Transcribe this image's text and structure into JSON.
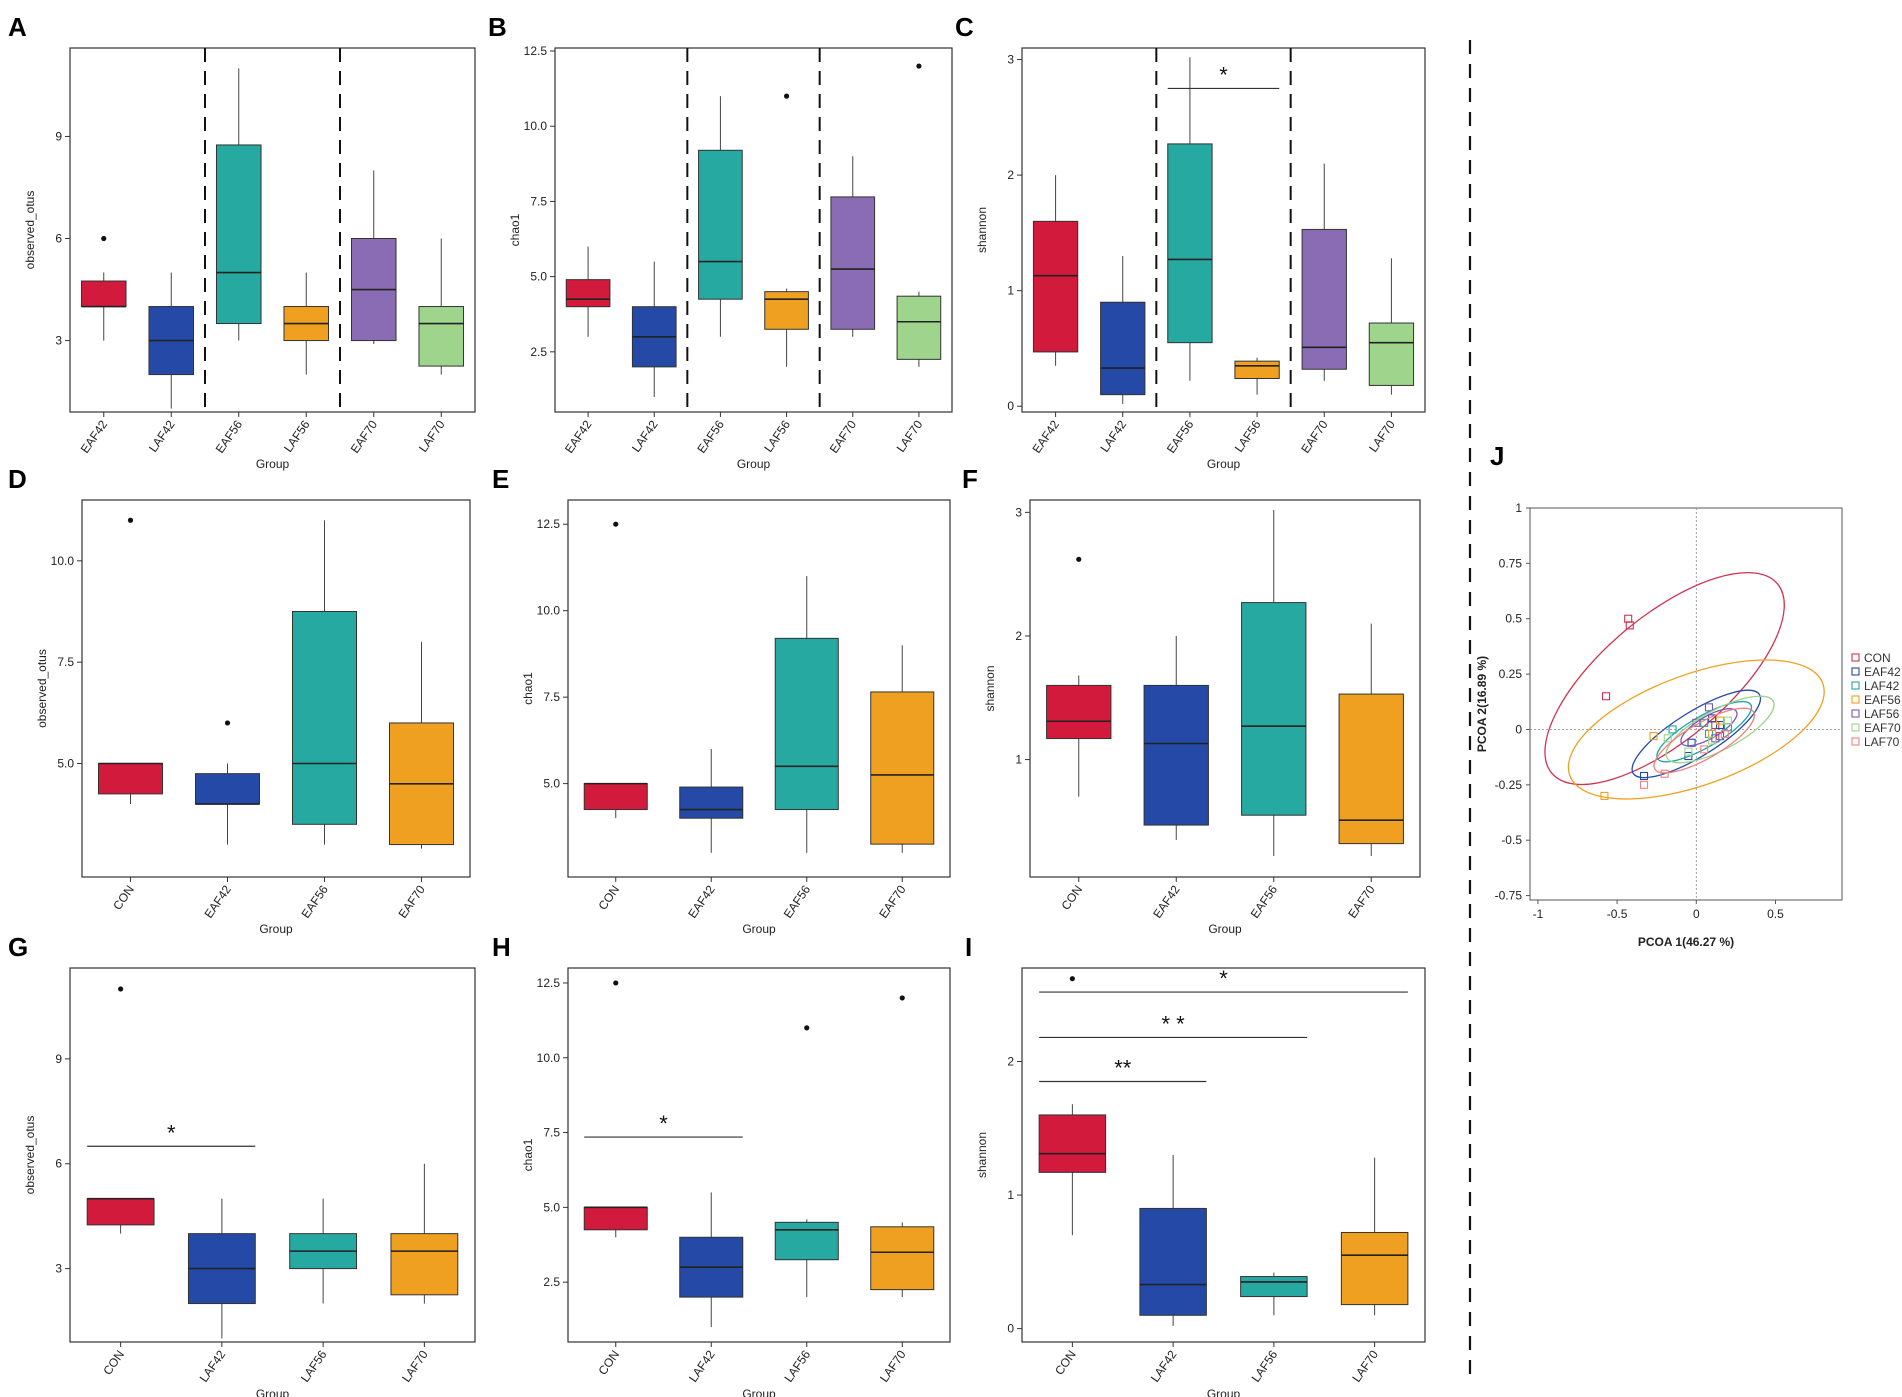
{
  "figure": {
    "colors": {
      "red": "#d11a3c",
      "blue": "#2549a6",
      "teal": "#26a9a0",
      "orange": "#f0a020",
      "purple": "#8a6cb4",
      "green": "#9ed48c"
    }
  },
  "chart_data": [
    {
      "id": "A",
      "label": "A",
      "type": "box",
      "xlabel": "Group",
      "ylabel": "observed_otus",
      "ylim": [
        0.9,
        11.6
      ],
      "yticks": [
        3,
        6,
        9
      ],
      "separators_after": [
        2,
        4
      ],
      "groups": [
        {
          "name": "EAF42",
          "color": "#d11a3c",
          "min": 3,
          "q1": 4,
          "median": 4,
          "q3": 4.75,
          "max": 5,
          "outliers": [
            6
          ]
        },
        {
          "name": "LAF42",
          "color": "#2549a6",
          "min": 1,
          "q1": 2,
          "median": 3,
          "q3": 4,
          "max": 5,
          "outliers": []
        },
        {
          "name": "EAF56",
          "color": "#26a9a0",
          "min": 3,
          "q1": 3.5,
          "median": 5,
          "q3": 8.75,
          "max": 11,
          "outliers": []
        },
        {
          "name": "LAF56",
          "color": "#f0a020",
          "min": 2,
          "q1": 3,
          "median": 3.5,
          "q3": 4,
          "max": 5,
          "outliers": []
        },
        {
          "name": "EAF70",
          "color": "#8a6cb4",
          "min": 2.9,
          "q1": 3,
          "median": 4.5,
          "q3": 6,
          "max": 8,
          "outliers": []
        },
        {
          "name": "LAF70",
          "color": "#9ed48c",
          "min": 2,
          "q1": 2.25,
          "median": 3.5,
          "q3": 4,
          "max": 6,
          "outliers": []
        }
      ],
      "significance": []
    },
    {
      "id": "B",
      "label": "B",
      "type": "box",
      "xlabel": "Group",
      "ylabel": "chao1",
      "ylim": [
        0.5,
        12.6
      ],
      "yticks": [
        2.5,
        5.0,
        7.5,
        10.0,
        12.5
      ],
      "ytick_labels": [
        "2.5",
        "5.0",
        "7.5",
        "10.0",
        "12.5"
      ],
      "separators_after": [
        2,
        4
      ],
      "groups": [
        {
          "name": "EAF42",
          "color": "#d11a3c",
          "min": 3,
          "q1": 4,
          "median": 4.25,
          "q3": 4.9,
          "max": 6,
          "outliers": []
        },
        {
          "name": "LAF42",
          "color": "#2549a6",
          "min": 1,
          "q1": 2,
          "median": 3,
          "q3": 4,
          "max": 5.5,
          "outliers": []
        },
        {
          "name": "EAF56",
          "color": "#26a9a0",
          "min": 3,
          "q1": 4.25,
          "median": 5.5,
          "q3": 9.2,
          "max": 11,
          "outliers": []
        },
        {
          "name": "LAF56",
          "color": "#f0a020",
          "min": 2,
          "q1": 3.25,
          "median": 4.25,
          "q3": 4.5,
          "max": 4.6,
          "outliers": [
            11
          ]
        },
        {
          "name": "EAF70",
          "color": "#8a6cb4",
          "min": 3,
          "q1": 3.25,
          "median": 5.25,
          "q3": 7.65,
          "max": 9,
          "outliers": []
        },
        {
          "name": "LAF70",
          "color": "#9ed48c",
          "min": 2,
          "q1": 2.25,
          "median": 3.5,
          "q3": 4.35,
          "max": 4.5,
          "outliers": [
            12
          ]
        }
      ],
      "significance": []
    },
    {
      "id": "C",
      "label": "C",
      "type": "box",
      "xlabel": "Group",
      "ylabel": "shannon",
      "ylim": [
        -0.05,
        3.1
      ],
      "yticks": [
        0,
        1,
        2,
        3
      ],
      "separators_after": [
        2,
        4
      ],
      "groups": [
        {
          "name": "EAF42",
          "color": "#d11a3c",
          "min": 0.35,
          "q1": 0.47,
          "median": 1.13,
          "q3": 1.6,
          "max": 2.0,
          "outliers": []
        },
        {
          "name": "LAF42",
          "color": "#2549a6",
          "min": 0.02,
          "q1": 0.1,
          "median": 0.33,
          "q3": 0.9,
          "max": 1.3,
          "outliers": []
        },
        {
          "name": "EAF56",
          "color": "#26a9a0",
          "min": 0.22,
          "q1": 0.55,
          "median": 1.27,
          "q3": 2.27,
          "max": 3.02,
          "outliers": []
        },
        {
          "name": "LAF56",
          "color": "#f0a020",
          "min": 0.1,
          "q1": 0.24,
          "median": 0.35,
          "q3": 0.39,
          "max": 0.42,
          "outliers": []
        },
        {
          "name": "EAF70",
          "color": "#8a6cb4",
          "min": 0.22,
          "q1": 0.32,
          "median": 0.51,
          "q3": 1.53,
          "max": 2.1,
          "outliers": []
        },
        {
          "name": "LAF70",
          "color": "#9ed48c",
          "min": 0.1,
          "q1": 0.18,
          "median": 0.55,
          "q3": 0.72,
          "max": 1.28,
          "outliers": []
        }
      ],
      "significance": [
        {
          "from": 2,
          "to": 3,
          "y": 2.75,
          "label": "*"
        }
      ]
    },
    {
      "id": "D",
      "label": "D",
      "type": "box",
      "xlabel": "Group",
      "ylabel": "observed_otus",
      "ylim": [
        2.2,
        11.5
      ],
      "yticks": [
        5.0,
        7.5,
        10.0
      ],
      "ytick_labels": [
        "5.0",
        "7.5",
        "10.0"
      ],
      "separators_after": [],
      "groups": [
        {
          "name": "CON",
          "color": "#d11a3c",
          "min": 4,
          "q1": 4.25,
          "median": 5,
          "q3": 5,
          "max": 5,
          "outliers": [
            11
          ]
        },
        {
          "name": "EAF42",
          "color": "#2549a6",
          "min": 3,
          "q1": 4,
          "median": 4,
          "q3": 4.75,
          "max": 5,
          "outliers": [
            6
          ]
        },
        {
          "name": "EAF56",
          "color": "#26a9a0",
          "min": 3,
          "q1": 3.5,
          "median": 5,
          "q3": 8.75,
          "max": 11,
          "outliers": []
        },
        {
          "name": "EAF70",
          "color": "#f0a020",
          "min": 2.9,
          "q1": 3,
          "median": 4.5,
          "q3": 6,
          "max": 8,
          "outliers": []
        }
      ],
      "significance": []
    },
    {
      "id": "E",
      "label": "E",
      "type": "box",
      "xlabel": "Group",
      "ylabel": "chao1",
      "ylim": [
        2.3,
        13.2
      ],
      "yticks": [
        5.0,
        7.5,
        10.0,
        12.5
      ],
      "ytick_labels": [
        "5.0",
        "7.5",
        "10.0",
        "12.5"
      ],
      "separators_after": [],
      "groups": [
        {
          "name": "CON",
          "color": "#d11a3c",
          "min": 4,
          "q1": 4.25,
          "median": 5,
          "q3": 5,
          "max": 5,
          "outliers": [
            12.5
          ]
        },
        {
          "name": "EAF42",
          "color": "#2549a6",
          "min": 3,
          "q1": 4,
          "median": 4.25,
          "q3": 4.9,
          "max": 6,
          "outliers": []
        },
        {
          "name": "EAF56",
          "color": "#26a9a0",
          "min": 3,
          "q1": 4.25,
          "median": 5.5,
          "q3": 9.2,
          "max": 11,
          "outliers": []
        },
        {
          "name": "EAF70",
          "color": "#f0a020",
          "min": 3,
          "q1": 3.25,
          "median": 5.25,
          "q3": 7.65,
          "max": 9,
          "outliers": []
        }
      ],
      "significance": []
    },
    {
      "id": "F",
      "label": "F",
      "type": "box",
      "xlabel": "Group",
      "ylabel": "shannon",
      "ylim": [
        0.05,
        3.1
      ],
      "yticks": [
        1,
        2,
        3
      ],
      "separators_after": [],
      "groups": [
        {
          "name": "CON",
          "color": "#d11a3c",
          "min": 0.7,
          "q1": 1.17,
          "median": 1.31,
          "q3": 1.6,
          "max": 1.68,
          "outliers": [
            2.62
          ]
        },
        {
          "name": "EAF42",
          "color": "#2549a6",
          "min": 0.35,
          "q1": 0.47,
          "median": 1.13,
          "q3": 1.6,
          "max": 2.0,
          "outliers": []
        },
        {
          "name": "EAF56",
          "color": "#26a9a0",
          "min": 0.22,
          "q1": 0.55,
          "median": 1.27,
          "q3": 2.27,
          "max": 3.02,
          "outliers": []
        },
        {
          "name": "EAF70",
          "color": "#f0a020",
          "min": 0.22,
          "q1": 0.32,
          "median": 0.51,
          "q3": 1.53,
          "max": 2.1,
          "outliers": []
        }
      ],
      "significance": []
    },
    {
      "id": "G",
      "label": "G",
      "type": "box",
      "xlabel": "Group",
      "ylabel": "observed_otus",
      "ylim": [
        0.9,
        11.6
      ],
      "yticks": [
        3,
        6,
        9
      ],
      "separators_after": [],
      "groups": [
        {
          "name": "CON",
          "color": "#d11a3c",
          "min": 4,
          "q1": 4.25,
          "median": 5,
          "q3": 5,
          "max": 5,
          "outliers": [
            11
          ]
        },
        {
          "name": "LAF42",
          "color": "#2549a6",
          "min": 1,
          "q1": 2,
          "median": 3,
          "q3": 4,
          "max": 5,
          "outliers": []
        },
        {
          "name": "LAF56",
          "color": "#26a9a0",
          "min": 2,
          "q1": 3,
          "median": 3.5,
          "q3": 4,
          "max": 5,
          "outliers": []
        },
        {
          "name": "LAF70",
          "color": "#f0a020",
          "min": 2,
          "q1": 2.25,
          "median": 3.5,
          "q3": 4,
          "max": 6,
          "outliers": []
        }
      ],
      "significance": [
        {
          "from": 0,
          "to": 1,
          "y": 6.5,
          "label": "*"
        }
      ]
    },
    {
      "id": "H",
      "label": "H",
      "type": "box",
      "xlabel": "Group",
      "ylabel": "chao1",
      "ylim": [
        0.5,
        13.0
      ],
      "yticks": [
        2.5,
        5.0,
        7.5,
        10.0,
        12.5
      ],
      "ytick_labels": [
        "2.5",
        "5.0",
        "7.5",
        "10.0",
        "12.5"
      ],
      "separators_after": [],
      "groups": [
        {
          "name": "CON",
          "color": "#d11a3c",
          "min": 4,
          "q1": 4.25,
          "median": 5,
          "q3": 5,
          "max": 5,
          "outliers": [
            12.5
          ]
        },
        {
          "name": "LAF42",
          "color": "#2549a6",
          "min": 1,
          "q1": 2,
          "median": 3,
          "q3": 4,
          "max": 5.5,
          "outliers": []
        },
        {
          "name": "LAF56",
          "color": "#26a9a0",
          "min": 2,
          "q1": 3.25,
          "median": 4.25,
          "q3": 4.5,
          "max": 4.6,
          "outliers": [
            11
          ]
        },
        {
          "name": "LAF70",
          "color": "#f0a020",
          "min": 2,
          "q1": 2.25,
          "median": 3.5,
          "q3": 4.35,
          "max": 4.5,
          "outliers": [
            12
          ]
        }
      ],
      "significance": [
        {
          "from": 0,
          "to": 1,
          "y": 7.35,
          "label": "*"
        }
      ]
    },
    {
      "id": "I",
      "label": "I",
      "type": "box",
      "xlabel": "Group",
      "ylabel": "shannon",
      "ylim": [
        -0.1,
        2.7
      ],
      "yticks": [
        0,
        1,
        2
      ],
      "separators_after": [],
      "groups": [
        {
          "name": "CON",
          "color": "#d11a3c",
          "min": 0.7,
          "q1": 1.17,
          "median": 1.31,
          "q3": 1.6,
          "max": 1.68,
          "outliers": [
            2.62
          ]
        },
        {
          "name": "LAF42",
          "color": "#2549a6",
          "min": 0.02,
          "q1": 0.1,
          "median": 0.33,
          "q3": 0.9,
          "max": 1.3,
          "outliers": []
        },
        {
          "name": "LAF56",
          "color": "#26a9a0",
          "min": 0.1,
          "q1": 0.24,
          "median": 0.35,
          "q3": 0.39,
          "max": 0.42,
          "outliers": []
        },
        {
          "name": "LAF70",
          "color": "#f0a020",
          "min": 0.1,
          "q1": 0.18,
          "median": 0.55,
          "q3": 0.72,
          "max": 1.28,
          "outliers": []
        }
      ],
      "significance": [
        {
          "from": 0,
          "to": 1,
          "y": 1.85,
          "label": "**"
        },
        {
          "from": 0,
          "to": 2,
          "y": 2.18,
          "label": "* *"
        },
        {
          "from": 0,
          "to": 3,
          "y": 2.52,
          "label": "*"
        }
      ]
    },
    {
      "id": "J",
      "label": "J",
      "type": "scatter",
      "xlabel": "PCOA 1(46.27 %)",
      "ylabel": "PCOA 2(16.89 %)",
      "xlim": [
        -1.05,
        0.92
      ],
      "ylim": [
        -0.77,
        1.0
      ],
      "xticks": [
        -1,
        -0.5,
        0,
        0.5
      ],
      "xtick_labels": [
        "-1",
        "-0.5",
        "0",
        "0.5"
      ],
      "yticks": [
        -0.75,
        -0.5,
        -0.25,
        0,
        0.25,
        0.5,
        0.75,
        1
      ],
      "ytick_labels": [
        "-0.75",
        "-0.5",
        "-0.25",
        "0",
        "0.25",
        "0.5",
        "0.75",
        "1"
      ],
      "series": [
        {
          "name": "CON",
          "color": "#d0334f",
          "points": [
            [
              -0.42,
              0.47
            ],
            [
              -0.43,
              0.5
            ],
            [
              -0.57,
              0.15
            ],
            [
              0.12,
              0.02
            ],
            [
              0.15,
              -0.03
            ]
          ],
          "ellipse": {
            "cx": -0.2,
            "cy": 0.23,
            "rx": 0.93,
            "ry": 0.28,
            "angle": -40
          }
        },
        {
          "name": "EAF42",
          "color": "#2549a6",
          "points": [
            [
              -0.33,
              -0.21
            ],
            [
              -0.03,
              -0.06
            ],
            [
              0.1,
              0.05
            ],
            [
              0.15,
              0.02
            ],
            [
              -0.05,
              -0.12
            ]
          ],
          "ellipse": {
            "cx": 0.0,
            "cy": -0.02,
            "rx": 0.47,
            "ry": 0.1,
            "angle": -32
          }
        },
        {
          "name": "LAF42",
          "color": "#1fa6a6",
          "points": [
            [
              -0.15,
              0.0
            ],
            [
              0.05,
              0.03
            ],
            [
              0.2,
              0.01
            ],
            [
              0.08,
              -0.02
            ]
          ],
          "ellipse": {
            "cx": 0.05,
            "cy": -0.01,
            "rx": 0.34,
            "ry": 0.07,
            "angle": -30
          }
        },
        {
          "name": "EAF56",
          "color": "#f0a020",
          "points": [
            [
              -0.58,
              -0.3
            ],
            [
              -0.27,
              -0.03
            ],
            [
              0.15,
              0.04
            ],
            [
              0.1,
              -0.02
            ]
          ],
          "ellipse": {
            "cx": 0.0,
            "cy": 0.0,
            "rx": 0.85,
            "ry": 0.25,
            "angle": -20
          }
        },
        {
          "name": "LAF56",
          "color": "#7a5ab0",
          "points": [
            [
              0.08,
              0.1
            ],
            [
              0.12,
              -0.04
            ],
            [
              0.0,
              0.03
            ]
          ],
          "ellipse": {
            "cx": 0.08,
            "cy": 0.01,
            "rx": 0.2,
            "ry": 0.05,
            "angle": -30
          }
        },
        {
          "name": "EAF70",
          "color": "#9ed48c",
          "points": [
            [
              -0.18,
              -0.04
            ],
            [
              0.2,
              0.04
            ],
            [
              0.1,
              -0.05
            ],
            [
              -0.05,
              -0.1
            ]
          ],
          "ellipse": {
            "cx": 0.15,
            "cy": 0.0,
            "rx": 0.38,
            "ry": 0.09,
            "angle": -28
          }
        },
        {
          "name": "LAF70",
          "color": "#f08080",
          "points": [
            [
              -0.33,
              -0.25
            ],
            [
              -0.2,
              -0.2
            ],
            [
              0.05,
              -0.09
            ],
            [
              0.18,
              -0.02
            ]
          ],
          "ellipse": {
            "cx": 0.05,
            "cy": -0.05,
            "rx": 0.36,
            "ry": 0.08,
            "angle": -30
          }
        }
      ]
    }
  ]
}
